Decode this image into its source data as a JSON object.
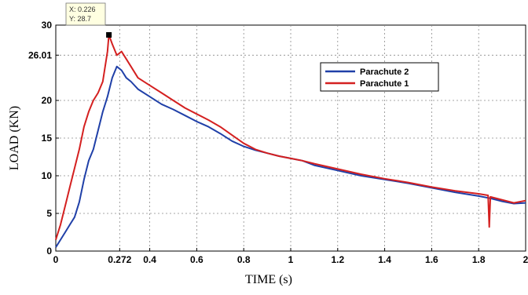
{
  "chart_data": {
    "type": "line",
    "xlabel": "TIME (s)",
    "ylabel": "LOAD (KN)",
    "xlim": [
      0,
      2
    ],
    "ylim": [
      0,
      30
    ],
    "x_ticks": [
      "0",
      "0.272",
      "0.4",
      "0.6",
      "0.8",
      "1",
      "1.2",
      "1.4",
      "1.6",
      "1.8",
      "2"
    ],
    "x_tick_values": [
      0,
      0.272,
      0.4,
      0.6,
      0.8,
      1,
      1.2,
      1.4,
      1.6,
      1.8,
      2
    ],
    "y_ticks": [
      "0",
      "5",
      "10",
      "15",
      "20",
      "26.01",
      "30"
    ],
    "y_tick_values": [
      0,
      5,
      10,
      15,
      20,
      26.01,
      30
    ],
    "grid": true,
    "legend_position": "top-right",
    "datatip": {
      "x_label": "X: 0.226",
      "y_label": "Y: 28.7",
      "x": 0.226,
      "y": 28.7
    },
    "series": [
      {
        "name": "Parachute 2",
        "color": "#2040a8",
        "x": [
          0,
          0.02,
          0.04,
          0.06,
          0.08,
          0.1,
          0.12,
          0.14,
          0.16,
          0.18,
          0.2,
          0.22,
          0.24,
          0.26,
          0.28,
          0.3,
          0.32,
          0.35,
          0.4,
          0.45,
          0.5,
          0.55,
          0.6,
          0.65,
          0.7,
          0.75,
          0.8,
          0.85,
          0.9,
          0.95,
          1.0,
          1.05,
          1.1,
          1.2,
          1.3,
          1.4,
          1.5,
          1.6,
          1.7,
          1.8,
          1.85,
          1.9,
          1.95,
          2.0
        ],
        "y": [
          0.5,
          1.5,
          2.5,
          3.5,
          4.5,
          6.5,
          9.5,
          12.0,
          13.5,
          16.0,
          18.5,
          20.5,
          23.0,
          24.5,
          24.0,
          23.0,
          22.5,
          21.5,
          20.5,
          19.5,
          18.8,
          18.0,
          17.2,
          16.5,
          15.6,
          14.6,
          13.9,
          13.4,
          13.0,
          12.6,
          12.3,
          12.0,
          11.4,
          10.7,
          10.0,
          9.5,
          9.0,
          8.4,
          7.8,
          7.3,
          7.0,
          6.6,
          6.3,
          6.4
        ]
      },
      {
        "name": "Parachute 1",
        "color": "#d42020",
        "x": [
          0,
          0.02,
          0.04,
          0.06,
          0.08,
          0.1,
          0.12,
          0.14,
          0.16,
          0.18,
          0.2,
          0.22,
          0.226,
          0.24,
          0.26,
          0.28,
          0.3,
          0.32,
          0.35,
          0.4,
          0.45,
          0.5,
          0.55,
          0.6,
          0.65,
          0.7,
          0.75,
          0.8,
          0.85,
          0.9,
          0.95,
          1.0,
          1.05,
          1.1,
          1.2,
          1.3,
          1.4,
          1.5,
          1.6,
          1.7,
          1.8,
          1.84,
          1.845,
          1.85,
          1.9,
          1.95,
          2.0
        ],
        "y": [
          1.5,
          3.5,
          6.0,
          8.5,
          11.0,
          13.5,
          16.5,
          18.5,
          20.0,
          21.0,
          22.5,
          26.5,
          28.7,
          27.5,
          26.0,
          26.5,
          25.5,
          24.5,
          23.0,
          22.0,
          21.0,
          20.0,
          19.0,
          18.2,
          17.4,
          16.5,
          15.4,
          14.3,
          13.5,
          13.0,
          12.6,
          12.3,
          12.0,
          11.6,
          10.9,
          10.2,
          9.6,
          9.1,
          8.5,
          8.0,
          7.6,
          7.4,
          3.2,
          7.2,
          6.8,
          6.4,
          6.7
        ]
      }
    ]
  }
}
